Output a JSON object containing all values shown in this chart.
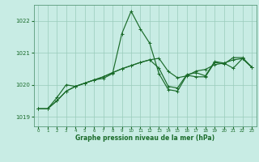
{
  "title": "Graphe pression niveau de la mer (hPa)",
  "background_color": "#c8ece4",
  "grid_color": "#99ccbb",
  "line_color": "#1a6b2a",
  "spine_color": "#5a9a7a",
  "xlim": [
    -0.5,
    23.5
  ],
  "ylim": [
    1018.7,
    1022.5
  ],
  "yticks": [
    1019,
    1020,
    1021,
    1022
  ],
  "xticks": [
    0,
    1,
    2,
    3,
    4,
    5,
    6,
    7,
    8,
    9,
    10,
    11,
    12,
    13,
    14,
    15,
    16,
    17,
    18,
    19,
    20,
    21,
    22,
    23
  ],
  "series1": {
    "x": [
      0,
      1,
      2,
      3,
      4,
      5,
      6,
      7,
      8,
      9,
      10,
      11,
      12,
      13,
      14,
      15,
      16,
      17,
      18,
      19,
      20,
      21,
      22,
      23
    ],
    "y": [
      1019.25,
      1019.25,
      1019.6,
      1020.0,
      1019.95,
      1020.05,
      1020.15,
      1020.2,
      1020.35,
      1021.6,
      1022.3,
      1021.75,
      1021.3,
      1020.35,
      1019.85,
      1019.8,
      1020.3,
      1020.25,
      1020.25,
      1020.7,
      1020.65,
      1020.85,
      1020.85,
      1020.55
    ]
  },
  "series2": {
    "x": [
      0,
      1,
      2,
      3,
      4,
      5,
      6,
      7,
      8,
      9,
      10,
      11,
      12,
      13,
      14,
      15,
      16,
      17,
      18,
      19,
      20,
      21,
      22,
      23
    ],
    "y": [
      1019.25,
      1019.25,
      1019.5,
      1019.8,
      1019.95,
      1020.05,
      1020.15,
      1020.25,
      1020.38,
      1020.5,
      1020.6,
      1020.7,
      1020.78,
      1020.83,
      1020.42,
      1020.22,
      1020.28,
      1020.43,
      1020.48,
      1020.63,
      1020.68,
      1020.78,
      1020.82,
      1020.55
    ]
  },
  "series3": {
    "x": [
      0,
      1,
      2,
      3,
      4,
      5,
      6,
      7,
      8,
      9,
      10,
      11,
      12,
      13,
      14,
      15,
      16,
      17,
      18,
      19,
      20,
      21,
      22,
      23
    ],
    "y": [
      1019.25,
      1019.25,
      1019.5,
      1019.8,
      1019.95,
      1020.05,
      1020.15,
      1020.25,
      1020.38,
      1020.5,
      1020.6,
      1020.7,
      1020.78,
      1020.52,
      1019.95,
      1019.9,
      1020.32,
      1020.38,
      1020.28,
      1020.73,
      1020.68,
      1020.52,
      1020.82,
      1020.55
    ]
  }
}
